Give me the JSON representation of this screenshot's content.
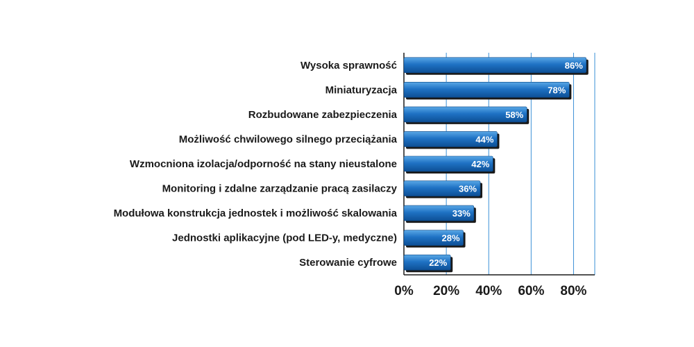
{
  "chart_data": {
    "type": "bar",
    "orientation": "horizontal",
    "categories": [
      "Wysoka sprawność",
      "Miniaturyzacja",
      "Rozbudowane zabezpieczenia",
      "Możliwość chwilowego silnego przeciążania",
      "Wzmocniona izolacja/odporność na stany nieustalone",
      "Monitoring i zdalne zarządzanie pracą zasilaczy",
      "Modułowa konstrukcja jednostek i możliwość skalowania",
      "Jednostki aplikacyjne (pod LED-y, medyczne)",
      "Sterowanie cyfrowe"
    ],
    "values": [
      86,
      78,
      58,
      44,
      42,
      36,
      33,
      28,
      22
    ],
    "value_labels": [
      "86%",
      "78%",
      "58%",
      "44%",
      "42%",
      "36%",
      "33%",
      "28%",
      "22%"
    ],
    "x_ticks": [
      0,
      20,
      40,
      60,
      80
    ],
    "x_tick_labels": [
      "0%",
      "20%",
      "40%",
      "60%",
      "80%"
    ],
    "xlim": [
      0,
      90
    ],
    "grid": "vertical",
    "legend": "none",
    "colors": {
      "bar_light": "#5aa8e6",
      "bar_mid": "#1f72c4",
      "bar_dark": "#0d4f95",
      "shadow": "#1a1a1a",
      "grid": "#3a8fd6"
    }
  }
}
